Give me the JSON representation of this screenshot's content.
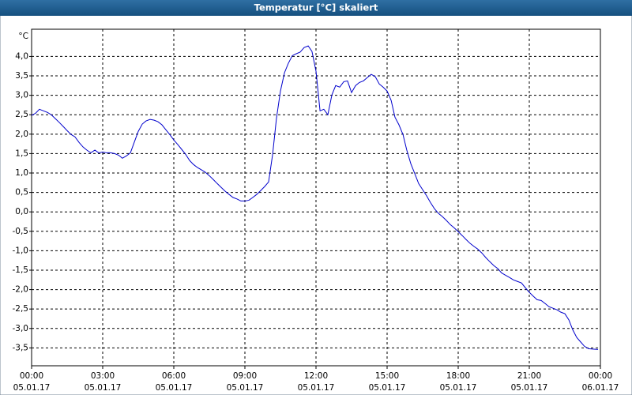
{
  "chart_data": {
    "type": "line",
    "title": "Temperatur [°C] skaliert",
    "y_label": "°C",
    "color": "#0000cc",
    "grid": true,
    "xlim": [
      0,
      24
    ],
    "ylim": [
      -3.96,
      4.7
    ],
    "xticks": [
      {
        "value": 0,
        "label": "00:00",
        "date": "05.01.17"
      },
      {
        "value": 3,
        "label": "03:00",
        "date": "05.01.17"
      },
      {
        "value": 6,
        "label": "06:00",
        "date": "05.01.17"
      },
      {
        "value": 9,
        "label": "09:00",
        "date": "05.01.17"
      },
      {
        "value": 12,
        "label": "12:00",
        "date": "05.01.17"
      },
      {
        "value": 15,
        "label": "15:00",
        "date": "05.01.17"
      },
      {
        "value": 18,
        "label": "18:00",
        "date": "05.01.17"
      },
      {
        "value": 21,
        "label": "21:00",
        "date": "05.01.17"
      },
      {
        "value": 24,
        "label": "00:00",
        "date": "06.01.17"
      }
    ],
    "yticks": [
      {
        "value": 4,
        "label": "4,0"
      },
      {
        "value": 3.5,
        "label": "3,5"
      },
      {
        "value": 3,
        "label": "3,0"
      },
      {
        "value": 2.5,
        "label": "2,5"
      },
      {
        "value": 2,
        "label": "2,0"
      },
      {
        "value": 1.5,
        "label": "1,5"
      },
      {
        "value": 1,
        "label": "1,0"
      },
      {
        "value": 0.5,
        "label": "0,5"
      },
      {
        "value": 0,
        "label": "0,0"
      },
      {
        "value": -0.5,
        "label": "-0,5"
      },
      {
        "value": -1,
        "label": "-1,0"
      },
      {
        "value": -1.5,
        "label": "-1,5"
      },
      {
        "value": -2,
        "label": "-2,0"
      },
      {
        "value": -2.5,
        "label": "-2,5"
      },
      {
        "value": -3,
        "label": "-3,0"
      },
      {
        "value": -3.5,
        "label": "-3,5"
      }
    ],
    "x": [
      0,
      0.17,
      0.33,
      0.5,
      0.67,
      0.83,
      1,
      1.17,
      1.33,
      1.5,
      1.67,
      1.83,
      2,
      2.17,
      2.33,
      2.5,
      2.67,
      2.83,
      3,
      3.17,
      3.33,
      3.5,
      3.67,
      3.83,
      4,
      4.17,
      4.33,
      4.5,
      4.67,
      4.83,
      5,
      5.17,
      5.33,
      5.5,
      5.67,
      5.83,
      6,
      6.17,
      6.33,
      6.5,
      6.67,
      6.83,
      7,
      7.17,
      7.33,
      7.5,
      7.67,
      7.83,
      8,
      8.17,
      8.33,
      8.5,
      8.67,
      8.83,
      9,
      9.17,
      9.33,
      9.5,
      9.67,
      9.83,
      10,
      10.17,
      10.33,
      10.5,
      10.67,
      10.83,
      11,
      11.17,
      11.33,
      11.5,
      11.67,
      11.83,
      12,
      12.17,
      12.33,
      12.5,
      12.67,
      12.83,
      13,
      13.17,
      13.33,
      13.5,
      13.67,
      13.83,
      14,
      14.17,
      14.33,
      14.5,
      14.67,
      14.83,
      15,
      15.17,
      15.33,
      15.5,
      15.67,
      15.83,
      16,
      16.17,
      16.33,
      16.5,
      16.67,
      16.83,
      17,
      17.17,
      17.33,
      17.5,
      17.67,
      17.83,
      18,
      18.17,
      18.33,
      18.5,
      18.67,
      18.83,
      19,
      19.17,
      19.33,
      19.5,
      19.67,
      19.83,
      20,
      20.17,
      20.33,
      20.5,
      20.67,
      20.83,
      21,
      21.17,
      21.33,
      21.5,
      21.67,
      21.83,
      22,
      22.17,
      22.33,
      22.5,
      22.67,
      22.83,
      23,
      23.17,
      23.33,
      23.5,
      23.67,
      23.9
    ],
    "values": [
      2.48,
      2.54,
      2.64,
      2.6,
      2.56,
      2.5,
      2.4,
      2.3,
      2.2,
      2.09,
      1.99,
      1.93,
      1.79,
      1.67,
      1.59,
      1.52,
      1.59,
      1.52,
      1.54,
      1.52,
      1.52,
      1.5,
      1.46,
      1.38,
      1.44,
      1.52,
      1.79,
      2.07,
      2.26,
      2.34,
      2.38,
      2.36,
      2.32,
      2.24,
      2.11,
      1.99,
      1.85,
      1.73,
      1.61,
      1.48,
      1.32,
      1.22,
      1.14,
      1.08,
      1.02,
      0.93,
      0.83,
      0.73,
      0.63,
      0.53,
      0.45,
      0.37,
      0.33,
      0.28,
      0.28,
      0.3,
      0.37,
      0.45,
      0.55,
      0.65,
      0.77,
      1.48,
      2.4,
      3.11,
      3.58,
      3.82,
      4.02,
      4.07,
      4.11,
      4.23,
      4.27,
      4.13,
      3.62,
      2.6,
      2.64,
      2.5,
      3.01,
      3.25,
      3.21,
      3.35,
      3.37,
      3.07,
      3.25,
      3.33,
      3.37,
      3.46,
      3.54,
      3.48,
      3.29,
      3.21,
      3.11,
      2.87,
      2.44,
      2.24,
      1.99,
      1.59,
      1.24,
      0.98,
      0.73,
      0.57,
      0.41,
      0.24,
      0.08,
      -0.04,
      -0.12,
      -0.22,
      -0.33,
      -0.41,
      -0.51,
      -0.61,
      -0.71,
      -0.81,
      -0.89,
      -0.96,
      -1.06,
      -1.18,
      -1.28,
      -1.38,
      -1.46,
      -1.57,
      -1.63,
      -1.69,
      -1.75,
      -1.79,
      -1.83,
      -1.95,
      -2.07,
      -2.17,
      -2.26,
      -2.28,
      -2.36,
      -2.44,
      -2.48,
      -2.52,
      -2.58,
      -2.62,
      -2.78,
      -3.03,
      -3.23,
      -3.35,
      -3.46,
      -3.52,
      -3.53,
      -3.54
    ]
  }
}
